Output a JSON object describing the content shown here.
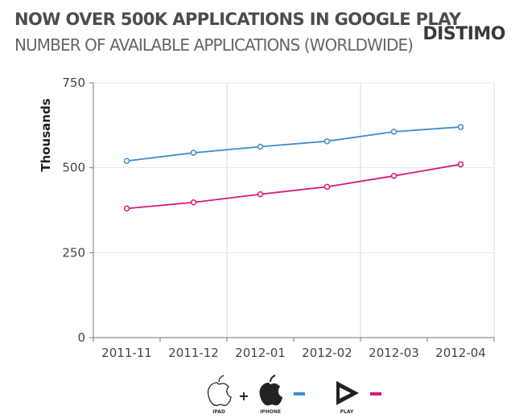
{
  "header": {
    "title": "NOW OVER 500K APPLICATIONS IN GOOGLE PLAY",
    "subtitle": "NUMBER OF AVAILABLE APPLICATIONS (WORLDWIDE)",
    "brand": "DISTIMO"
  },
  "chart_data": {
    "type": "line",
    "ylabel": "Thousands",
    "xlabel": "",
    "ylim": [
      0,
      750
    ],
    "yticks": [
      0,
      250,
      500,
      750
    ],
    "grid": "vertical",
    "legend_position": "bottom-center",
    "categories": [
      "2011-11",
      "2011-12",
      "2012-01",
      "2012-02",
      "2012-03",
      "2012-04"
    ],
    "series": [
      {
        "key": "ios",
        "color": "#3d8fd1",
        "values": [
          520,
          544,
          562,
          578,
          606,
          620
        ]
      },
      {
        "key": "play",
        "color": "#d6197b",
        "values": [
          380,
          398,
          422,
          444,
          476,
          510
        ]
      }
    ]
  },
  "legend": {
    "plus": "+",
    "ipad_caption": "IPAD",
    "iphone_caption": "IPHONE",
    "play_caption": "PLAY",
    "ios_icons": [
      "apple-outline-icon",
      "apple-solid-icon"
    ],
    "play_icon": "play-triangle-icon"
  }
}
